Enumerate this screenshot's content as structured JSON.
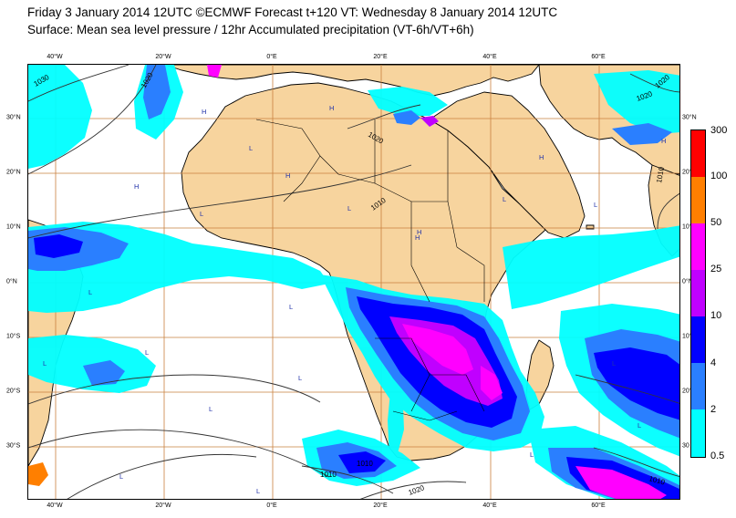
{
  "header": {
    "line1": "Friday 3 January 2014 12UTC ©ECMWF Forecast t+120 VT: Wednesday 8 January 2014 12UTC",
    "line2": "Surface: Mean sea level pressure / 12hr Accumulated precipitation (VT-6h/VT+6h)"
  },
  "map": {
    "lon_ticks": [
      "40°W",
      "20°W",
      "0°E",
      "20°E",
      "40°E",
      "60°E"
    ],
    "lat_ticks_left": [
      "30°N",
      "20°N",
      "10°N",
      "0°N",
      "10°S",
      "20°S",
      "30°S"
    ],
    "lat_ticks_right": [
      "30°N",
      "20°N",
      "10°N",
      "0°N",
      "10°S",
      "20°S",
      "30"
    ],
    "isobar_labels": [
      "1030",
      "1020",
      "1020",
      "1020",
      "1020",
      "1010",
      "1010",
      "1010",
      "1010",
      "1020",
      "1010"
    ],
    "pressure_centers": [
      "H",
      "H",
      "H",
      "H",
      "H",
      "H",
      "H",
      "L",
      "L",
      "L",
      "L",
      "L",
      "L",
      "L",
      "L",
      "L",
      "L",
      "L",
      "H",
      "L",
      "L",
      "L",
      "L",
      "L"
    ],
    "colors": {
      "ocean": "#ffffff",
      "land": "#f7d49e",
      "grid": "#c9803f",
      "coast": "#000000"
    }
  },
  "legend": {
    "labels": [
      "300",
      "100",
      "50",
      "25",
      "10",
      "4",
      "2",
      "0.5"
    ],
    "colors": [
      "#ff0000",
      "#ff7f00",
      "#ff00ff",
      "#c000ff",
      "#0000ff",
      "#2a7fff",
      "#00ffff"
    ]
  }
}
